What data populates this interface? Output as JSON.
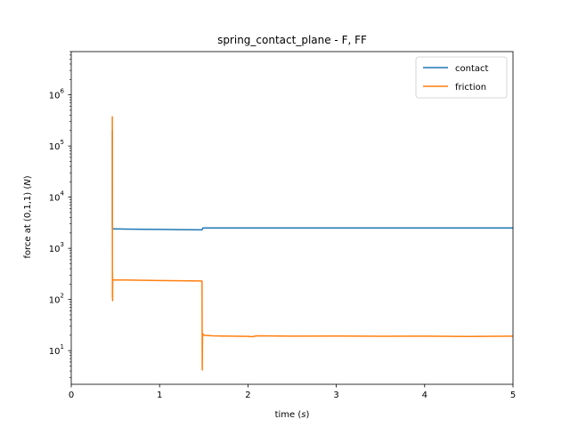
{
  "chart_data": {
    "type": "line",
    "title": "spring_contact_plane - F, FF",
    "xlabel": "time (s)",
    "ylabel": "force at (0,1,1) (N)",
    "xlim": [
      0,
      5
    ],
    "ylim": [
      2.2,
      7000000
    ],
    "yscale": "log",
    "grid": false,
    "legend_position": "top-right",
    "x_ticks": [
      0,
      1,
      2,
      3,
      4,
      5
    ],
    "x_tick_labels": [
      "0",
      "1",
      "2",
      "3",
      "4",
      "5"
    ],
    "y_ticks": [
      10,
      100,
      1000,
      10000,
      100000,
      1000000
    ],
    "y_tick_labels": [
      {
        "base": "10",
        "exp": "1"
      },
      {
        "base": "10",
        "exp": "2"
      },
      {
        "base": "10",
        "exp": "3"
      },
      {
        "base": "10",
        "exp": "4"
      },
      {
        "base": "10",
        "exp": "5"
      },
      {
        "base": "10",
        "exp": "6"
      }
    ],
    "series": [
      {
        "name": "contact",
        "color": "#1f77b4",
        "x": [
          0.465,
          0.465,
          0.468,
          0.47,
          0.6,
          0.8,
          1.0,
          1.2,
          1.48,
          1.49,
          1.5,
          2.0,
          3.0,
          4.0,
          5.0
        ],
        "y": [
          210000,
          2400,
          2350,
          2400,
          2380,
          2360,
          2340,
          2320,
          2300,
          2500,
          2500,
          2500,
          2500,
          2500,
          2500
        ]
      },
      {
        "name": "friction",
        "color": "#ff7f0e",
        "x": [
          0.465,
          0.466,
          0.467,
          0.468,
          0.469,
          0.47,
          0.472,
          0.48,
          0.6,
          1.0,
          1.48,
          1.483,
          1.486,
          1.49,
          1.5,
          1.6,
          1.8,
          2.0,
          2.05,
          2.1,
          2.5,
          3.0,
          3.5,
          4.0,
          4.5,
          5.0
        ],
        "y": [
          380000,
          110,
          330,
          95,
          240,
          250,
          240,
          240,
          240,
          235,
          230,
          4.2,
          22,
          21,
          20,
          19.5,
          19.2,
          19.0,
          18.7,
          19.5,
          19.2,
          19.3,
          19.1,
          19.2,
          18.9,
          19.2
        ]
      }
    ]
  }
}
